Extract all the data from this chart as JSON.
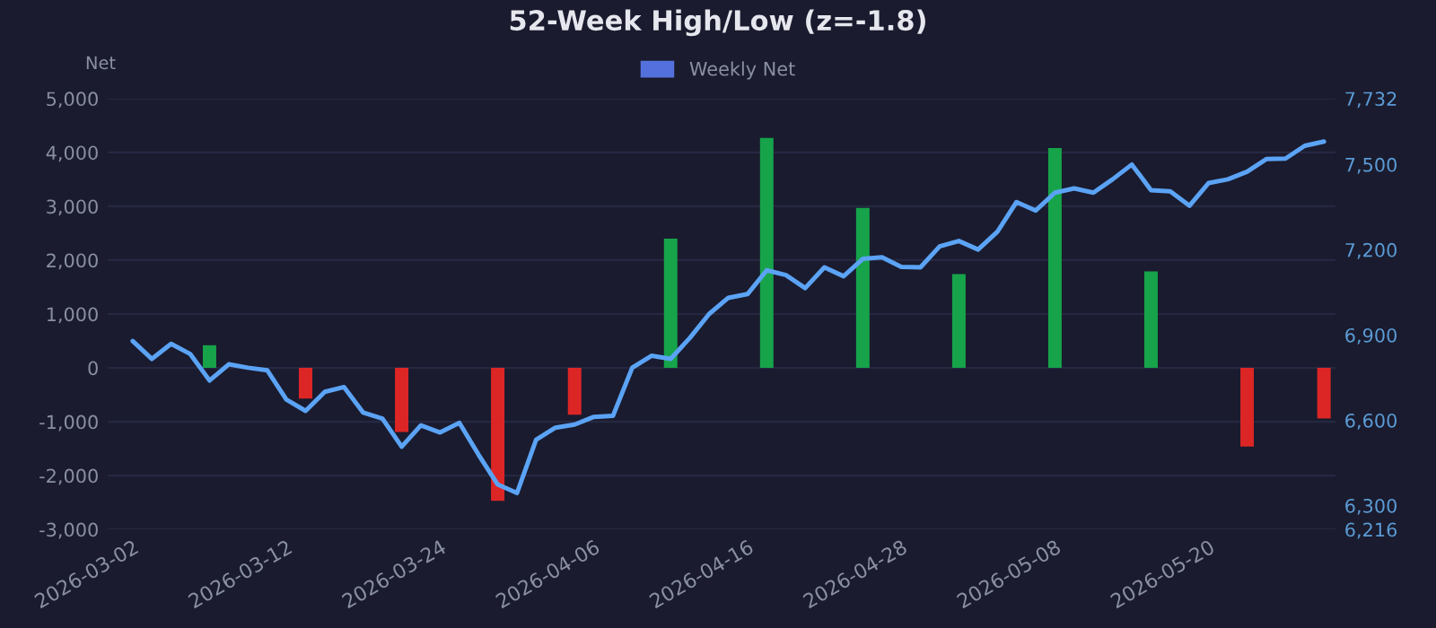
{
  "chart_data": {
    "type": "bar",
    "title": "52-Week High/Low (z=-1.8)",
    "ylabel": "Net",
    "categories": [
      "2026-03-02",
      null,
      null,
      null,
      null,
      null,
      null,
      null,
      "2026-03-12",
      null,
      null,
      null,
      null,
      null,
      null,
      null,
      "2026-03-24",
      null,
      null,
      null,
      null,
      null,
      null,
      null,
      "2026-04-06",
      null,
      null,
      null,
      null,
      null,
      null,
      null,
      "2026-04-16",
      null,
      null,
      null,
      null,
      null,
      null,
      null,
      "2026-04-28",
      null,
      null,
      null,
      null,
      null,
      null,
      null,
      "2026-05-08",
      null,
      null,
      null,
      null,
      null,
      null,
      null,
      "2026-05-20",
      null,
      null,
      null,
      null,
      null,
      null
    ],
    "series": [
      {
        "name": "Weekly Net",
        "color": "#5470dc",
        "colors": [
          null,
          null,
          null,
          null,
          "#16a34a",
          null,
          null,
          null,
          null,
          "#dc2626",
          null,
          null,
          null,
          null,
          "#dc2626",
          null,
          null,
          null,
          null,
          "#dc2626",
          null,
          null,
          null,
          "#dc2626",
          null,
          null,
          null,
          null,
          "#16a34a",
          null,
          null,
          null,
          null,
          "#16a34a",
          null,
          null,
          null,
          null,
          "#16a34a",
          null,
          null,
          null,
          null,
          "#16a34a",
          null,
          null,
          null,
          null,
          "#16a34a",
          null,
          null,
          null,
          null,
          "#16a34a",
          null,
          null,
          null,
          null,
          "#dc2626",
          null,
          null,
          null,
          "#dc2626"
        ],
        "values": [
          null,
          null,
          null,
          null,
          420,
          null,
          null,
          null,
          null,
          -570,
          null,
          null,
          null,
          null,
          -1190,
          null,
          null,
          null,
          null,
          -2470,
          null,
          null,
          null,
          -870,
          null,
          null,
          null,
          null,
          2400,
          null,
          null,
          null,
          null,
          4270,
          null,
          null,
          null,
          null,
          2970,
          null,
          null,
          null,
          null,
          1740,
          null,
          null,
          null,
          null,
          4080,
          null,
          null,
          null,
          null,
          1790,
          null,
          null,
          null,
          null,
          -1460,
          null,
          null,
          null,
          -940
        ]
      },
      {
        "type": "line",
        "axis": "y2",
        "color": "#5ba3f5",
        "values": [
          6879,
          6816,
          6869,
          6833,
          6740,
          6797,
          6785,
          6776,
          6673,
          6633,
          6700,
          6717,
          6627,
          6606,
          6507,
          6582,
          6557,
          6591,
          6479,
          6374,
          6344,
          6532,
          6574,
          6585,
          6612,
          6616,
          6785,
          6827,
          6816,
          6890,
          6974,
          7031,
          7044,
          7128,
          7111,
          7065,
          7138,
          7107,
          7168,
          7174,
          7140,
          7138,
          7212,
          7231,
          7201,
          7263,
          7368,
          7338,
          7401,
          7416,
          7401,
          7448,
          7500,
          7410,
          7406,
          7355,
          7435,
          7448,
          7475,
          7519,
          7521,
          7566,
          7581
        ]
      }
    ],
    "ylim": [
      -3000,
      5000
    ],
    "yticks": [
      {
        "value": -3000,
        "label": "-3,000"
      },
      {
        "value": -2000,
        "label": "-2,000"
      },
      {
        "value": -1000,
        "label": "-1,000"
      },
      0,
      {
        "value": 1000,
        "label": "1,000"
      },
      {
        "value": 2000,
        "label": "2,000"
      },
      {
        "value": 3000,
        "label": "3,000"
      },
      {
        "value": 4000,
        "label": "4,000"
      },
      {
        "value": 5000,
        "label": "5,000"
      }
    ],
    "y2lim": [
      6216,
      7732
    ],
    "y2ticks": [
      {
        "value": 6216,
        "label": "6,216"
      },
      {
        "value": 6300,
        "label": "6,300"
      },
      {
        "value": 6600,
        "label": "6,600"
      },
      {
        "value": 6900,
        "label": "6,900"
      },
      {
        "value": 7200,
        "label": "7,200"
      },
      {
        "value": 7500,
        "label": "7,500"
      },
      {
        "value": 7732,
        "label": "7,732"
      }
    ],
    "grid": "y",
    "legend": "top"
  }
}
